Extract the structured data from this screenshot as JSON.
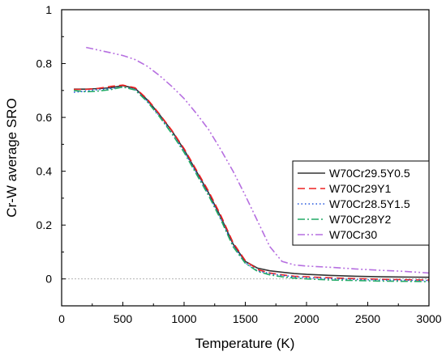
{
  "chart_data": {
    "type": "line",
    "xlabel": "Temperature (K)",
    "ylabel": "Cr-W average SRO",
    "xlim": [
      0,
      3000
    ],
    "ylim": [
      -0.1,
      1.0
    ],
    "xticks": [
      0,
      500,
      1000,
      1500,
      2000,
      2500,
      3000
    ],
    "yticks": [
      0,
      0.2,
      0.4,
      0.6,
      0.8,
      1
    ],
    "xtick_labels": [
      "0",
      "500",
      "1000",
      "1500",
      "2000",
      "2500",
      "3000"
    ],
    "ytick_labels": [
      "0",
      "0.2",
      "0.4",
      "0.6",
      "0.8",
      "1"
    ],
    "reference_line": {
      "y": 0,
      "style": "dotted",
      "color": "#999999"
    },
    "legend_position": "right",
    "series": [
      {
        "name": "W70Cr29.5Y0.5",
        "color": "#333333",
        "dash": "solid",
        "x": [
          100,
          200,
          300,
          400,
          500,
          600,
          700,
          800,
          900,
          1000,
          1100,
          1200,
          1300,
          1400,
          1500,
          1600,
          1700,
          1800,
          1900,
          2000,
          2200,
          2400,
          2600,
          2800,
          3000
        ],
        "y": [
          0.705,
          0.705,
          0.707,
          0.71,
          0.718,
          0.708,
          0.665,
          0.61,
          0.55,
          0.48,
          0.4,
          0.32,
          0.23,
          0.13,
          0.065,
          0.04,
          0.03,
          0.025,
          0.02,
          0.017,
          0.013,
          0.01,
          0.008,
          0.007,
          0.006
        ]
      },
      {
        "name": "W70Cr29Y1",
        "color": "#ee2222",
        "dash": "dashed",
        "x": [
          100,
          200,
          300,
          400,
          500,
          600,
          700,
          800,
          900,
          1000,
          1100,
          1200,
          1300,
          1400,
          1500,
          1600,
          1700,
          1800,
          1900,
          2000,
          2200,
          2400,
          2600,
          2800,
          3000
        ],
        "y": [
          0.704,
          0.704,
          0.708,
          0.715,
          0.72,
          0.71,
          0.668,
          0.612,
          0.552,
          0.484,
          0.405,
          0.326,
          0.236,
          0.135,
          0.068,
          0.035,
          0.022,
          0.015,
          0.01,
          0.008,
          0.004,
          0.001,
          -0.001,
          -0.003,
          -0.004
        ]
      },
      {
        "name": "W70Cr28.5Y1.5",
        "color": "#2255dd",
        "dash": "dotted",
        "x": [
          100,
          200,
          300,
          400,
          500,
          600,
          700,
          800,
          900,
          1000,
          1100,
          1200,
          1300,
          1400,
          1500,
          1600,
          1700,
          1800,
          1900,
          2000,
          2200,
          2400,
          2600,
          2800,
          3000
        ],
        "y": [
          0.693,
          0.698,
          0.703,
          0.707,
          0.712,
          0.705,
          0.66,
          0.605,
          0.542,
          0.475,
          0.395,
          0.315,
          0.225,
          0.125,
          0.06,
          0.03,
          0.02,
          0.013,
          0.008,
          0.005,
          0.001,
          -0.002,
          -0.004,
          -0.005,
          -0.006
        ]
      },
      {
        "name": "W70Cr28Y2",
        "color": "#22aa66",
        "dash": "dashdot",
        "x": [
          100,
          200,
          300,
          400,
          500,
          600,
          700,
          800,
          900,
          1000,
          1100,
          1200,
          1300,
          1400,
          1500,
          1600,
          1700,
          1800,
          1900,
          2000,
          2200,
          2400,
          2600,
          2800,
          3000
        ],
        "y": [
          0.7,
          0.695,
          0.698,
          0.703,
          0.713,
          0.702,
          0.658,
          0.602,
          0.54,
          0.47,
          0.39,
          0.31,
          0.22,
          0.12,
          0.058,
          0.028,
          0.015,
          0.008,
          0.003,
          0.0,
          -0.004,
          -0.006,
          -0.008,
          -0.009,
          -0.01
        ]
      },
      {
        "name": "W70Cr30",
        "color": "#b66fe0",
        "dash": "dashdotdot",
        "x": [
          200,
          300,
          400,
          500,
          600,
          700,
          800,
          900,
          1000,
          1100,
          1200,
          1300,
          1400,
          1500,
          1600,
          1700,
          1800,
          1900,
          2000,
          2200,
          2400,
          2600,
          2800,
          3000
        ],
        "y": [
          0.86,
          0.85,
          0.84,
          0.83,
          0.815,
          0.79,
          0.755,
          0.715,
          0.67,
          0.615,
          0.555,
          0.48,
          0.4,
          0.31,
          0.215,
          0.12,
          0.065,
          0.052,
          0.048,
          0.043,
          0.037,
          0.032,
          0.028,
          0.022
        ]
      }
    ]
  }
}
